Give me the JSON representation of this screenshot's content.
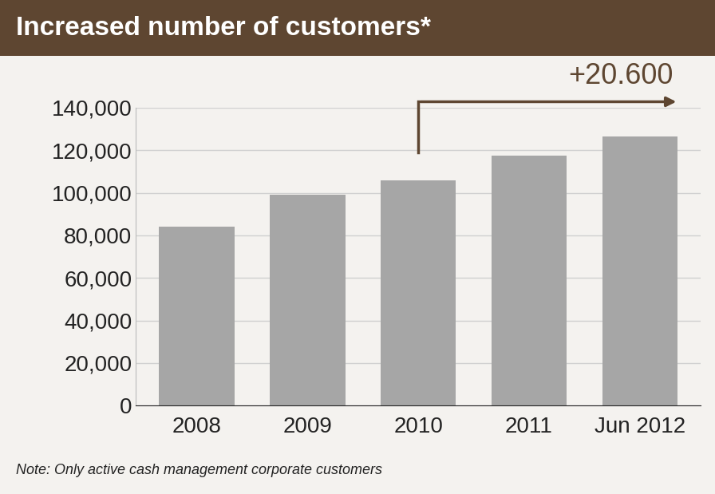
{
  "chart_data": {
    "type": "bar",
    "title": "Increased number of customers*",
    "categories": [
      "2008",
      "2009",
      "2010",
      "2011",
      "Jun 2012"
    ],
    "values": [
      84000,
      99000,
      106000,
      117500,
      126600
    ],
    "color": "#a6a6a6",
    "ylim": [
      0,
      140000
    ],
    "yticks": [
      0,
      {
        "value": 20000,
        "label": "20,000"
      },
      {
        "value": 40000,
        "label": "40,000"
      },
      {
        "value": 60000,
        "label": "60,000"
      },
      {
        "value": 80000,
        "label": "80,000"
      },
      {
        "value": 100000,
        "label": "100,000"
      },
      {
        "value": 120000,
        "label": "120,000"
      },
      {
        "value": 140000,
        "label": "140,000"
      }
    ],
    "grid": true,
    "annotation": {
      "text": "+20.600",
      "from": "2010",
      "to": "Jun 2012"
    },
    "note": "Note: Only active cash management corporate customers"
  }
}
